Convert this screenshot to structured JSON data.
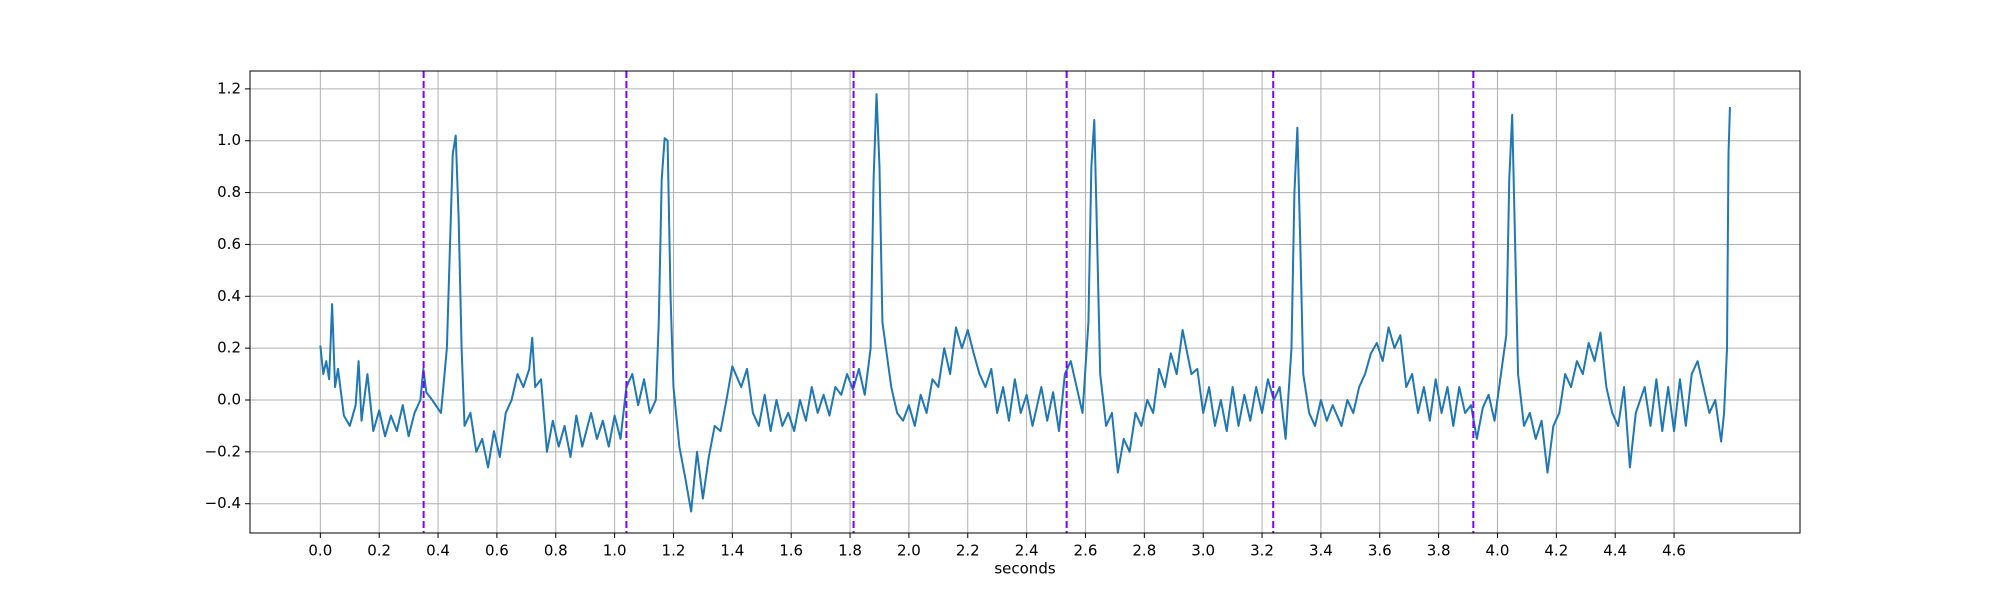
{
  "chart_data": {
    "type": "line",
    "x_label": "seconds",
    "xlim": [
      -0.239,
      5.028
    ],
    "ylim": [
      -0.513,
      1.269
    ],
    "grid": true,
    "xticks": [
      {
        "value": 0,
        "label": "0.0"
      },
      0.2,
      0.4,
      0.6,
      0.8,
      {
        "value": 1,
        "label": "1.0"
      },
      1.2,
      1.4,
      1.6,
      1.8,
      {
        "value": 2,
        "label": "2.0"
      },
      2.2,
      2.4,
      2.6,
      2.8,
      {
        "value": 3,
        "label": "3.0"
      },
      3.2,
      3.4,
      3.6,
      3.8,
      {
        "value": 4,
        "label": "4.0"
      },
      4.2,
      4.4,
      4.6
    ],
    "yticks": [
      {
        "value": -0.4,
        "label": "−0.4"
      },
      {
        "value": -0.2,
        "label": "−0.2"
      },
      {
        "value": 0,
        "label": "0.0"
      },
      0.2,
      0.4,
      0.6,
      0.8,
      {
        "value": 1,
        "label": "1.0"
      },
      1.2
    ],
    "vlines": {
      "color": "#7f00ff",
      "dashed": true,
      "x": [
        0.351,
        1.04,
        1.812,
        2.536,
        3.238,
        3.918
      ]
    },
    "series": [
      {
        "color": "#1f77b4",
        "x": [
          0,
          0.01,
          0.02,
          0.03,
          0.04,
          0.05,
          0.06,
          0.08,
          0.1,
          0.12,
          0.13,
          0.14,
          0.16,
          0.18,
          0.2,
          0.22,
          0.24,
          0.26,
          0.28,
          0.3,
          0.32,
          0.34,
          0.35,
          0.36,
          0.38,
          0.41,
          0.43,
          0.45,
          0.46,
          0.47,
          0.48,
          0.49,
          0.51,
          0.53,
          0.55,
          0.57,
          0.59,
          0.61,
          0.63,
          0.65,
          0.67,
          0.69,
          0.71,
          0.72,
          0.73,
          0.75,
          0.77,
          0.79,
          0.81,
          0.83,
          0.85,
          0.87,
          0.89,
          0.92,
          0.94,
          0.96,
          0.98,
          1.0,
          1.02,
          1.04,
          1.06,
          1.08,
          1.1,
          1.12,
          1.14,
          1.15,
          1.16,
          1.17,
          1.18,
          1.19,
          1.2,
          1.22,
          1.24,
          1.26,
          1.28,
          1.3,
          1.32,
          1.34,
          1.36,
          1.38,
          1.4,
          1.43,
          1.45,
          1.47,
          1.49,
          1.51,
          1.53,
          1.55,
          1.57,
          1.59,
          1.61,
          1.63,
          1.65,
          1.67,
          1.69,
          1.71,
          1.73,
          1.75,
          1.77,
          1.79,
          1.81,
          1.83,
          1.85,
          1.87,
          1.88,
          1.89,
          1.9,
          1.91,
          1.94,
          1.96,
          1.98,
          2.0,
          2.02,
          2.04,
          2.06,
          2.08,
          2.1,
          2.12,
          2.14,
          2.16,
          2.18,
          2.2,
          2.22,
          2.24,
          2.26,
          2.28,
          2.3,
          2.32,
          2.34,
          2.36,
          2.38,
          2.4,
          2.42,
          2.45,
          2.47,
          2.49,
          2.51,
          2.53,
          2.55,
          2.57,
          2.59,
          2.61,
          2.62,
          2.63,
          2.64,
          2.65,
          2.67,
          2.69,
          2.71,
          2.73,
          2.75,
          2.77,
          2.79,
          2.81,
          2.83,
          2.85,
          2.87,
          2.89,
          2.91,
          2.93,
          2.96,
          2.98,
          3.0,
          3.02,
          3.04,
          3.06,
          3.08,
          3.1,
          3.12,
          3.14,
          3.16,
          3.18,
          3.2,
          3.22,
          3.24,
          3.26,
          3.28,
          3.3,
          3.31,
          3.32,
          3.33,
          3.34,
          3.36,
          3.38,
          3.4,
          3.42,
          3.44,
          3.47,
          3.49,
          3.51,
          3.53,
          3.55,
          3.57,
          3.59,
          3.61,
          3.63,
          3.65,
          3.67,
          3.69,
          3.71,
          3.73,
          3.75,
          3.77,
          3.79,
          3.81,
          3.83,
          3.85,
          3.87,
          3.89,
          3.91,
          3.93,
          3.95,
          3.97,
          3.99,
          4.03,
          4.04,
          4.05,
          4.06,
          4.07,
          4.09,
          4.11,
          4.13,
          4.15,
          4.17,
          4.19,
          4.21,
          4.23,
          4.25,
          4.27,
          4.29,
          4.31,
          4.33,
          4.35,
          4.37,
          4.39,
          4.41,
          4.43,
          4.45,
          4.47,
          4.5,
          4.52,
          4.54,
          4.56,
          4.58,
          4.6,
          4.62,
          4.64,
          4.66,
          4.68,
          4.7,
          4.72,
          4.74,
          4.76,
          4.77,
          4.78,
          4.785,
          4.79
        ],
        "values": [
          0.21,
          0.1,
          0.15,
          0.08,
          0.37,
          0.05,
          0.12,
          -0.06,
          -0.1,
          -0.02,
          0.15,
          -0.08,
          0.1,
          -0.12,
          -0.04,
          -0.14,
          -0.06,
          -0.12,
          -0.02,
          -0.14,
          -0.05,
          0.0,
          0.12,
          0.03,
          0.0,
          -0.05,
          0.2,
          0.95,
          1.02,
          0.7,
          0.2,
          -0.1,
          -0.05,
          -0.2,
          -0.15,
          -0.26,
          -0.12,
          -0.22,
          -0.05,
          0.0,
          0.1,
          0.05,
          0.12,
          0.24,
          0.05,
          0.08,
          -0.2,
          -0.08,
          -0.18,
          -0.1,
          -0.22,
          -0.06,
          -0.18,
          -0.05,
          -0.15,
          -0.08,
          -0.18,
          -0.06,
          -0.15,
          0.05,
          0.1,
          -0.02,
          0.08,
          -0.05,
          0.0,
          0.3,
          0.85,
          1.01,
          1.0,
          0.4,
          0.05,
          -0.18,
          -0.3,
          -0.43,
          -0.2,
          -0.38,
          -0.22,
          -0.1,
          -0.12,
          0.0,
          0.13,
          0.05,
          0.12,
          -0.05,
          -0.1,
          0.02,
          -0.12,
          0.0,
          -0.1,
          -0.05,
          -0.12,
          0.0,
          -0.08,
          0.05,
          -0.05,
          0.02,
          -0.06,
          0.05,
          0.02,
          0.1,
          0.04,
          0.12,
          0.02,
          0.2,
          0.85,
          1.18,
          0.9,
          0.3,
          0.05,
          -0.05,
          -0.08,
          -0.02,
          -0.1,
          0.02,
          -0.05,
          0.08,
          0.05,
          0.2,
          0.1,
          0.28,
          0.2,
          0.27,
          0.18,
          0.1,
          0.05,
          0.12,
          -0.05,
          0.05,
          -0.08,
          0.08,
          -0.05,
          0.02,
          -0.1,
          0.05,
          -0.08,
          0.03,
          -0.12,
          0.1,
          0.15,
          0.05,
          -0.05,
          0.3,
          0.9,
          1.08,
          0.6,
          0.1,
          -0.1,
          -0.05,
          -0.28,
          -0.15,
          -0.2,
          -0.05,
          -0.1,
          0.0,
          -0.05,
          0.12,
          0.05,
          0.18,
          0.1,
          0.27,
          0.1,
          0.12,
          -0.05,
          0.05,
          -0.1,
          0.0,
          -0.12,
          0.05,
          -0.1,
          0.02,
          -0.08,
          0.05,
          -0.05,
          0.08,
          0.0,
          0.05,
          -0.15,
          0.2,
          0.8,
          1.05,
          0.6,
          0.1,
          -0.05,
          -0.1,
          0.0,
          -0.08,
          -0.02,
          -0.1,
          0.0,
          -0.05,
          0.05,
          0.1,
          0.18,
          0.22,
          0.15,
          0.28,
          0.2,
          0.25,
          0.05,
          0.1,
          -0.05,
          0.05,
          -0.08,
          0.08,
          -0.05,
          0.05,
          -0.1,
          0.05,
          -0.05,
          -0.02,
          -0.15,
          -0.03,
          0.02,
          -0.08,
          0.25,
          0.85,
          1.1,
          0.6,
          0.1,
          -0.1,
          -0.05,
          -0.15,
          -0.08,
          -0.28,
          -0.1,
          -0.05,
          0.1,
          0.05,
          0.15,
          0.1,
          0.22,
          0.15,
          0.26,
          0.05,
          -0.05,
          -0.1,
          0.05,
          -0.26,
          -0.05,
          0.05,
          -0.1,
          0.08,
          -0.12,
          0.05,
          -0.12,
          0.08,
          -0.1,
          0.1,
          0.15,
          0.05,
          -0.05,
          0.0,
          -0.16,
          -0.05,
          0.2,
          0.95,
          1.13
        ]
      }
    ]
  }
}
